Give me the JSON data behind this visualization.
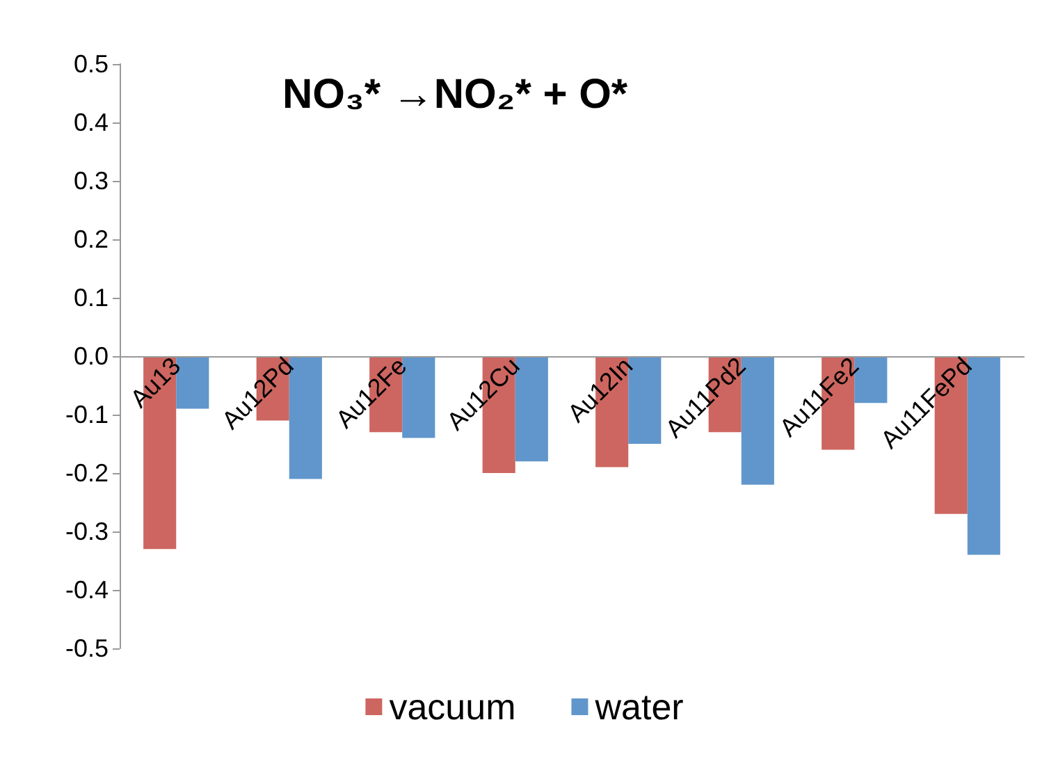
{
  "chart_data": {
    "type": "bar",
    "title": "NO₃* →NO₂* + O*",
    "categories": [
      "Au13",
      "Au12Pd",
      "Au12Fe",
      "Au12Cu",
      "Au12In",
      "Au11Pd2",
      "Au11Fe2",
      "Au11FePd"
    ],
    "series": [
      {
        "name": "vacuum",
        "color": "#cd6660",
        "values": [
          -0.33,
          -0.11,
          -0.13,
          -0.2,
          -0.19,
          -0.13,
          -0.16,
          -0.27
        ]
      },
      {
        "name": "water",
        "color": "#6096cb",
        "values": [
          -0.09,
          -0.21,
          -0.14,
          -0.18,
          -0.15,
          -0.22,
          -0.08,
          -0.34
        ]
      }
    ],
    "ylim": [
      -0.5,
      0.5
    ],
    "yticks": [
      {
        "value": -0.5,
        "label": "-0.5"
      },
      {
        "value": -0.4,
        "label": "-0.4"
      },
      {
        "value": -0.3,
        "label": "-0.3"
      },
      {
        "value": -0.2,
        "label": "-0.2"
      },
      {
        "value": -0.1,
        "label": "-0.1"
      },
      {
        "value": 0,
        "label": "0.0"
      },
      {
        "value": 0.1,
        "label": "0.1"
      },
      {
        "value": 0.2,
        "label": "0.2"
      },
      {
        "value": 0.3,
        "label": "0.3"
      },
      {
        "value": 0.4,
        "label": "0.4"
      },
      {
        "value": 0.5,
        "label": "0.5"
      }
    ],
    "grid": false,
    "legend": "bottom"
  }
}
